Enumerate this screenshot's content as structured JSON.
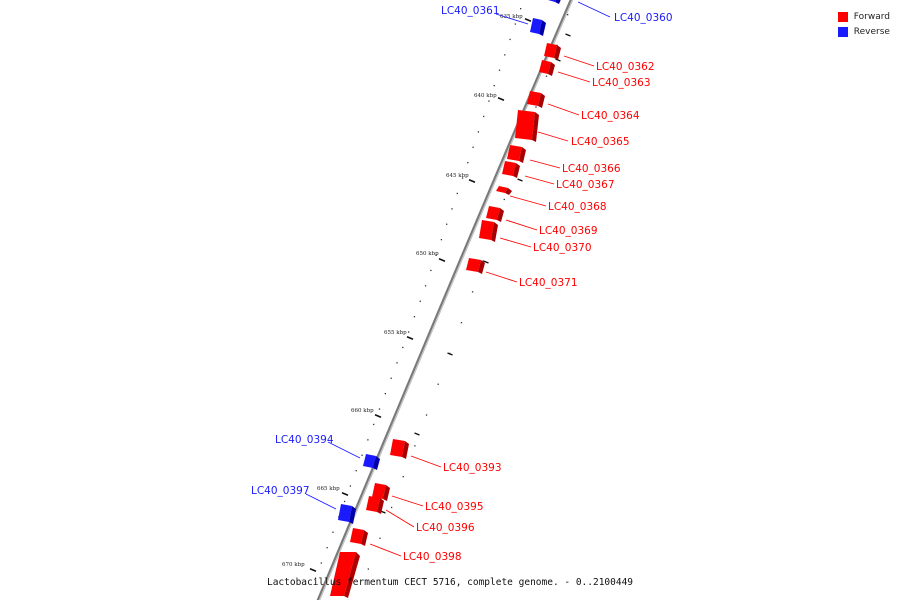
{
  "colors": {
    "forward": "#ff0000",
    "reverse": "#1a1aff",
    "backbone": "#888888",
    "tick": "#111111"
  },
  "legend": [
    {
      "label": "Forward",
      "color": "#ff0000"
    },
    {
      "label": "Reverse",
      "color": "#1a1aff"
    }
  ],
  "caption": "Lactobacillus fermentum CECT 5716, complete genome. - 0..2100449",
  "scale": {
    "unit": "kbp",
    "major_ticks": [
      {
        "label": "635 kbp"
      },
      {
        "label": "640 kbp"
      },
      {
        "label": "645 kbp"
      },
      {
        "label": "650 kbp"
      },
      {
        "label": "655 kbp"
      },
      {
        "label": "660 kbp"
      },
      {
        "label": "665 kbp"
      },
      {
        "label": "670 kbp"
      }
    ]
  },
  "genes": [
    {
      "name": "LC40_0360",
      "strand": "reverse"
    },
    {
      "name": "LC40_0361",
      "strand": "reverse"
    },
    {
      "name": "LC40_0362",
      "strand": "forward"
    },
    {
      "name": "LC40_0363",
      "strand": "forward"
    },
    {
      "name": "LC40_0364",
      "strand": "forward"
    },
    {
      "name": "LC40_0365",
      "strand": "forward"
    },
    {
      "name": "LC40_0366",
      "strand": "forward"
    },
    {
      "name": "LC40_0367",
      "strand": "forward"
    },
    {
      "name": "LC40_0368",
      "strand": "forward"
    },
    {
      "name": "LC40_0369",
      "strand": "forward"
    },
    {
      "name": "LC40_0370",
      "strand": "forward"
    },
    {
      "name": "LC40_0371",
      "strand": "forward"
    },
    {
      "name": "LC40_0393",
      "strand": "forward"
    },
    {
      "name": "LC40_0394",
      "strand": "reverse"
    },
    {
      "name": "LC40_0395",
      "strand": "forward"
    },
    {
      "name": "LC40_0396",
      "strand": "forward"
    },
    {
      "name": "LC40_0397",
      "strand": "reverse"
    },
    {
      "name": "LC40_0398",
      "strand": "forward"
    }
  ]
}
